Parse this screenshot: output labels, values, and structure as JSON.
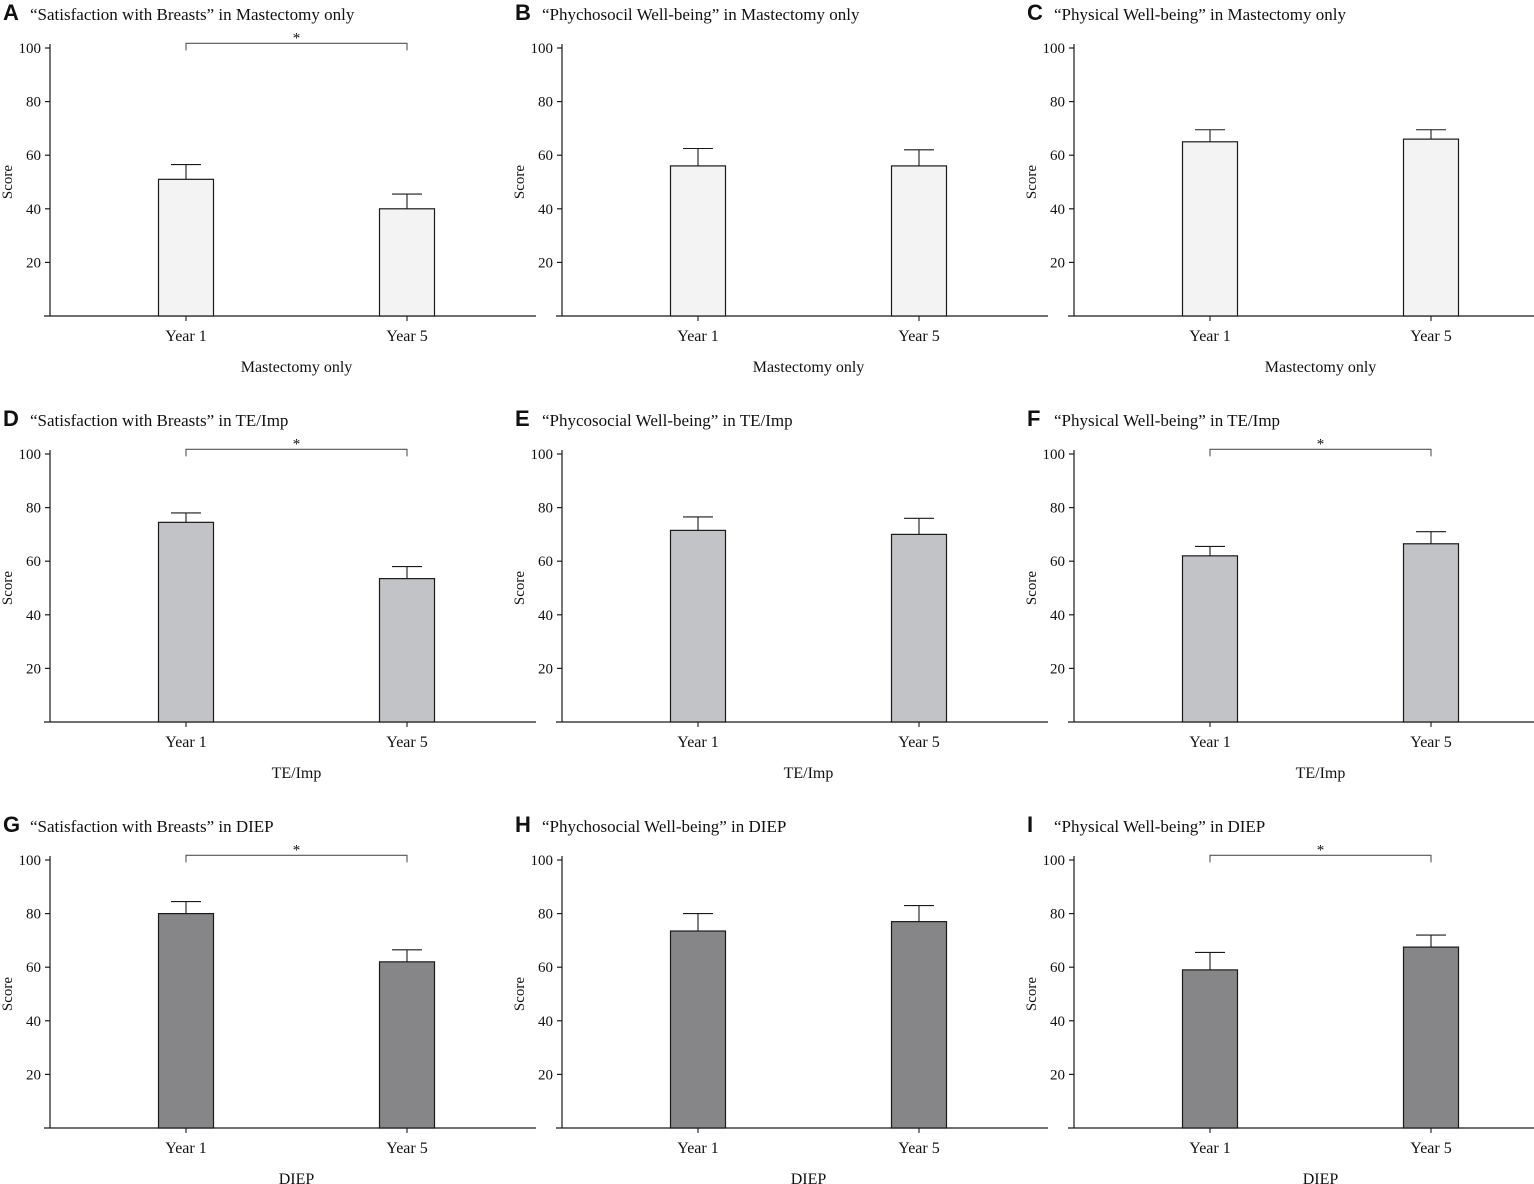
{
  "colors": {
    "mastectomy_fill": "#f2f3f2",
    "teimp_fill": "#c2c3c6",
    "diep_fill": "#868689",
    "stroke": "#1a1a1a",
    "sig_line": "#555555"
  },
  "chart_data": [
    {
      "panel": "A",
      "type": "bar",
      "title": "“Satisfaction with Breasts” in Mastectomy only",
      "categories": [
        "Year 1",
        "Year 5"
      ],
      "values": [
        51,
        40
      ],
      "errors": [
        5.5,
        5.5
      ],
      "xlabel": "Mastectomy only",
      "ylabel": "Score",
      "ylim": [
        0,
        100
      ],
      "yticks": [
        20,
        40,
        60,
        80,
        100
      ],
      "fill": "mastectomy_fill",
      "significance": {
        "from": 0,
        "to": 1,
        "label": "*",
        "level": 101
      }
    },
    {
      "panel": "B",
      "type": "bar",
      "title": "“Phychosocil Well-being” in Mastectomy only",
      "categories": [
        "Year 1",
        "Year 5"
      ],
      "values": [
        56,
        56
      ],
      "errors": [
        6.5,
        6
      ],
      "xlabel": "Mastectomy only",
      "ylabel": "Score",
      "ylim": [
        0,
        100
      ],
      "yticks": [
        20,
        40,
        60,
        80,
        100
      ],
      "fill": "mastectomy_fill",
      "significance": null
    },
    {
      "panel": "C",
      "type": "bar",
      "title": "“Physical Well-being” in Mastectomy only",
      "categories": [
        "Year 1",
        "Year 5"
      ],
      "values": [
        65,
        66
      ],
      "errors": [
        4.5,
        3.5
      ],
      "xlabel": "Mastectomy only",
      "ylabel": "Score",
      "ylim": [
        0,
        100
      ],
      "yticks": [
        20,
        40,
        60,
        80,
        100
      ],
      "fill": "mastectomy_fill",
      "significance": null
    },
    {
      "panel": "D",
      "type": "bar",
      "title": "“Satisfaction with Breasts” in TE/Imp",
      "categories": [
        "Year 1",
        "Year 5"
      ],
      "values": [
        74.5,
        53.5
      ],
      "errors": [
        3.5,
        4.5
      ],
      "xlabel": "TE/Imp",
      "ylabel": "Score",
      "ylim": [
        0,
        100
      ],
      "yticks": [
        20,
        40,
        60,
        80,
        100
      ],
      "fill": "teimp_fill",
      "significance": {
        "from": 0,
        "to": 1,
        "label": "*",
        "level": 101
      }
    },
    {
      "panel": "E",
      "type": "bar",
      "title": "“Phycosocial Well-being” in TE/Imp",
      "categories": [
        "Year 1",
        "Year 5"
      ],
      "values": [
        71.5,
        70
      ],
      "errors": [
        5,
        6
      ],
      "xlabel": "TE/Imp",
      "ylabel": "Score",
      "ylim": [
        0,
        100
      ],
      "yticks": [
        20,
        40,
        60,
        80,
        100
      ],
      "fill": "teimp_fill",
      "significance": null
    },
    {
      "panel": "F",
      "type": "bar",
      "title": "“Physical Well-being” in TE/Imp",
      "categories": [
        "Year 1",
        "Year 5"
      ],
      "values": [
        62,
        66.5
      ],
      "errors": [
        3.5,
        4.5
      ],
      "xlabel": "TE/Imp",
      "ylabel": "Score",
      "ylim": [
        0,
        100
      ],
      "yticks": [
        20,
        40,
        60,
        80,
        100
      ],
      "fill": "teimp_fill",
      "significance": {
        "from": 0,
        "to": 1,
        "label": "*",
        "level": 101
      }
    },
    {
      "panel": "G",
      "type": "bar",
      "title": "“Satisfaction with Breasts” in DIEP",
      "categories": [
        "Year 1",
        "Year 5"
      ],
      "values": [
        80,
        62
      ],
      "errors": [
        4.5,
        4.5
      ],
      "xlabel": "DIEP",
      "ylabel": "Score",
      "ylim": [
        0,
        100
      ],
      "yticks": [
        20,
        40,
        60,
        80,
        100
      ],
      "fill": "diep_fill",
      "significance": {
        "from": 0,
        "to": 1,
        "label": "*",
        "level": 101
      }
    },
    {
      "panel": "H",
      "type": "bar",
      "title": "“Phychosocial Well-being” in DIEP",
      "categories": [
        "Year 1",
        "Year 5"
      ],
      "values": [
        73.5,
        77
      ],
      "errors": [
        6.5,
        6
      ],
      "xlabel": "DIEP",
      "ylabel": "Score",
      "ylim": [
        0,
        100
      ],
      "yticks": [
        20,
        40,
        60,
        80,
        100
      ],
      "fill": "diep_fill",
      "significance": null
    },
    {
      "panel": "I",
      "type": "bar",
      "title": "“Physical Well-being” in DIEP",
      "categories": [
        "Year 1",
        "Year 5"
      ],
      "values": [
        59,
        67.5
      ],
      "errors": [
        6.5,
        4.5
      ],
      "xlabel": "DIEP",
      "ylabel": "Score",
      "ylim": [
        0,
        100
      ],
      "yticks": [
        20,
        40,
        60,
        80,
        100
      ],
      "fill": "diep_fill",
      "significance": {
        "from": 0,
        "to": 1,
        "label": "*",
        "level": 101
      }
    }
  ]
}
